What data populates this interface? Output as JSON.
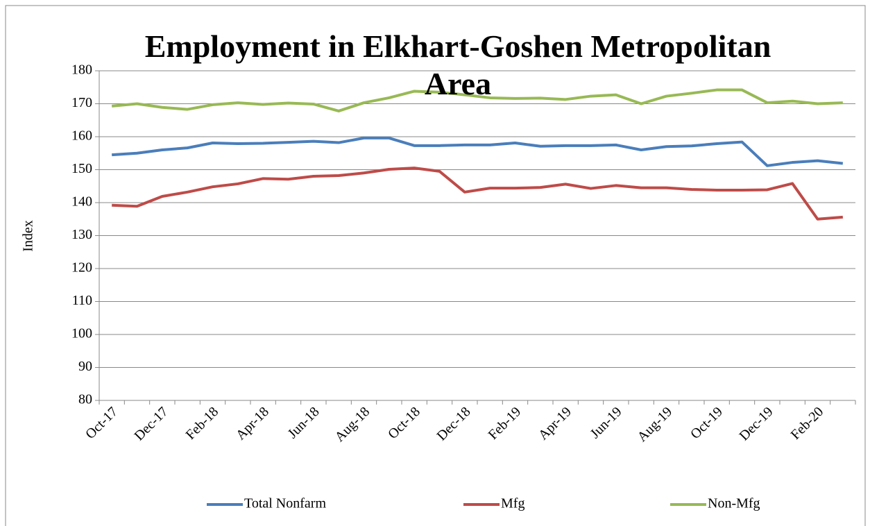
{
  "chart_data": {
    "type": "line",
    "title": "Employment in Elkhart-Goshen Metropolitan Area",
    "y_label": "Index",
    "categories": [
      "Oct-17",
      null,
      "Dec-17",
      null,
      "Feb-18",
      null,
      "Apr-18",
      null,
      "Jun-18",
      null,
      "Aug-18",
      null,
      "Oct-18",
      null,
      "Dec-18",
      null,
      "Feb-19",
      null,
      "Apr-19",
      null,
      "Jun-19",
      null,
      "Aug-19",
      null,
      "Oct-19",
      null,
      "Dec-19",
      null,
      "Feb-20",
      null
    ],
    "series": [
      {
        "name": "Total Nonfarm",
        "color": "#4a7ebb",
        "values": [
          154.5,
          155,
          156,
          156.6,
          158.1,
          157.9,
          158,
          158.3,
          158.6,
          158.2,
          159.6,
          159.6,
          157.3,
          157.3,
          157.5,
          157.5,
          158.1,
          157.1,
          157.3,
          157.3,
          157.5,
          156,
          157,
          157.2,
          157.9,
          158.4,
          151.2,
          152.2,
          152.7,
          151.9
        ]
      },
      {
        "name": "Mfg",
        "color": "#be4b48",
        "values": [
          139.2,
          138.9,
          141.9,
          143.2,
          144.8,
          145.7,
          147.3,
          147.1,
          148,
          148.2,
          149,
          150.1,
          150.5,
          149.5,
          143.2,
          144.4,
          144.4,
          144.6,
          145.6,
          144.3,
          145.2,
          144.5,
          144.5,
          144,
          143.8,
          143.8,
          143.9,
          145.8,
          135,
          135.6
        ]
      },
      {
        "name": "Non-Mfg",
        "color": "#98b954",
        "values": [
          169.3,
          170,
          168.9,
          168.3,
          169.7,
          170.3,
          169.8,
          170.2,
          169.9,
          167.8,
          170.3,
          171.8,
          173.8,
          173.5,
          172.7,
          171.8,
          171.6,
          171.7,
          171.3,
          172.3,
          172.7,
          170,
          172.3,
          173.2,
          174.2,
          174.2,
          170.3,
          170.8,
          170,
          170.3
        ]
      }
    ],
    "ylim": [
      80,
      180
    ],
    "yticks": [
      80,
      90,
      100,
      110,
      120,
      130,
      140,
      150,
      160,
      170,
      180
    ],
    "grid": true,
    "legend": "bottom"
  }
}
